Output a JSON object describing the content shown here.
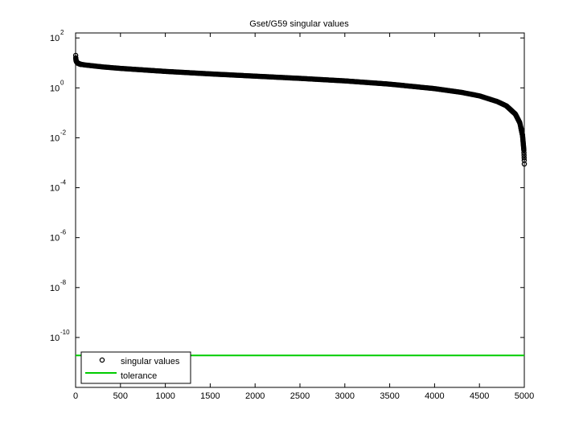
{
  "chart_data": {
    "type": "scatter",
    "title": "Gset/G59 singular values",
    "xlabel": "",
    "ylabel": "",
    "y_scale": "log",
    "xlim": [
      0,
      5000
    ],
    "ylim_exponent": [
      -12,
      2.2
    ],
    "x_ticks": [
      0,
      500,
      1000,
      1500,
      2000,
      2500,
      3000,
      3500,
      4000,
      4500,
      5000
    ],
    "y_tick_exponents": [
      2,
      0,
      -2,
      -4,
      -6,
      -8,
      -10
    ],
    "y_tick_base": "10",
    "grid": false,
    "legend_position": "bottom-left",
    "series": [
      {
        "name": "singular values",
        "marker": "circle",
        "color": "#000000",
        "n": 5000,
        "x": [
          1,
          2,
          5,
          10,
          20,
          50,
          100,
          200,
          300,
          500,
          1000,
          1500,
          2000,
          2500,
          3000,
          3500,
          4000,
          4300,
          4500,
          4700,
          4800,
          4900,
          4950,
          4980,
          4990,
          4995,
          4997,
          4999,
          5000
        ],
        "log10_values": [
          1.3,
          1.2,
          1.1,
          1.05,
          1.0,
          0.95,
          0.92,
          0.88,
          0.84,
          0.78,
          0.66,
          0.56,
          0.47,
          0.38,
          0.28,
          0.15,
          -0.03,
          -0.18,
          -0.32,
          -0.55,
          -0.72,
          -1.05,
          -1.4,
          -1.9,
          -2.3,
          -2.5,
          -2.7,
          -2.9,
          -3.05
        ]
      },
      {
        "name": "tolerance",
        "marker": "line",
        "color": "#00cc00",
        "log10_value": -10.72
      }
    ]
  }
}
